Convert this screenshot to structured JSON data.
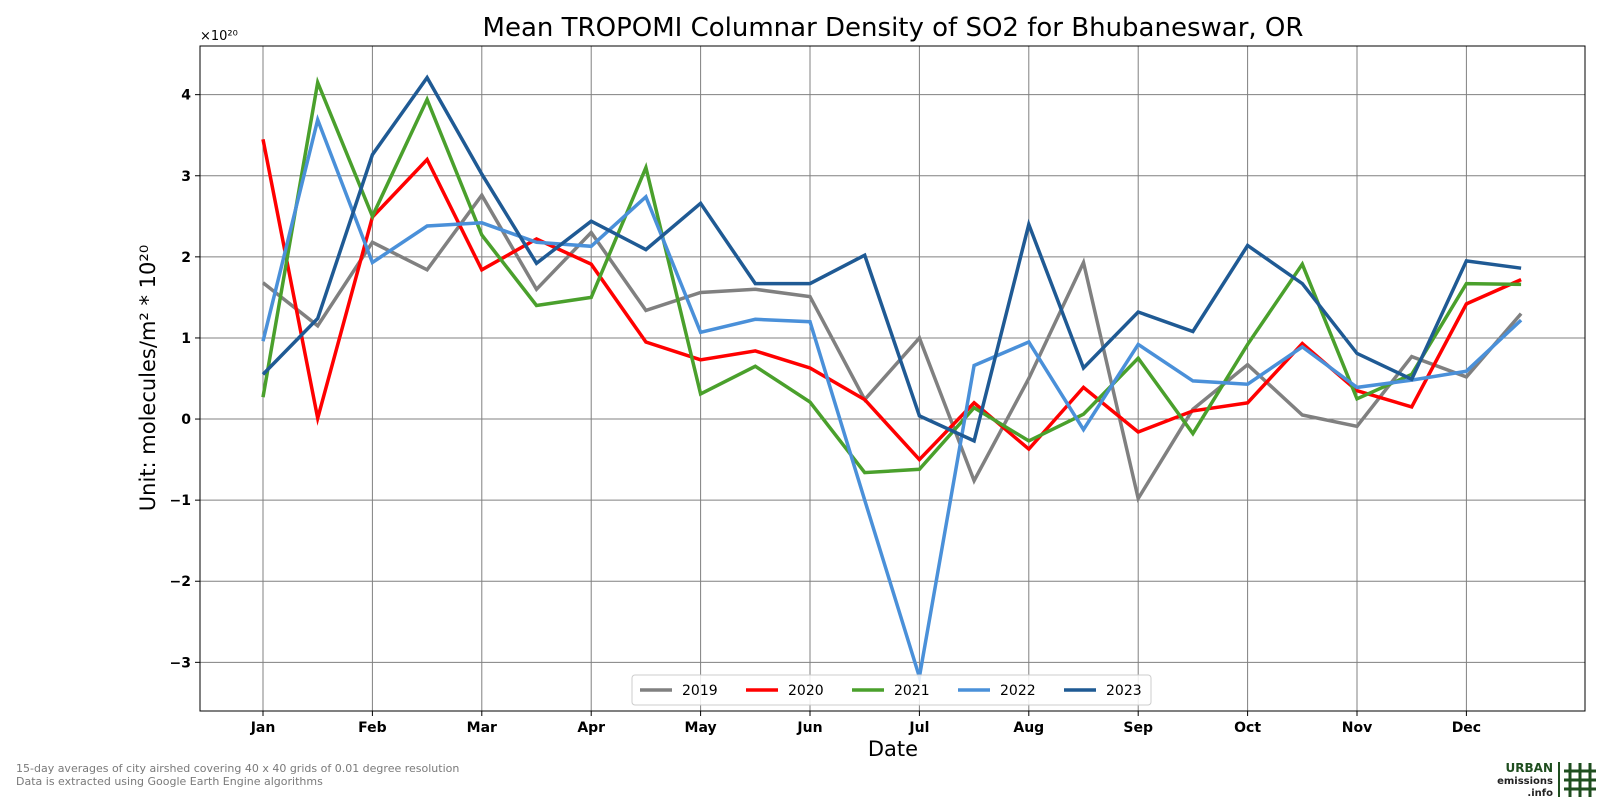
{
  "chart_data": {
    "type": "line",
    "title": "Mean TROPOMI Columnar Density of SO2 for Bhubaneswar, OR",
    "xlabel": "Date",
    "ylabel": "Unit: molecules/m² * 10²⁰",
    "y_offset_label": "×10²⁰",
    "ylim": [
      -3.6,
      4.6
    ],
    "yticks": [
      -3,
      -2,
      -1,
      0,
      1,
      2,
      3,
      4
    ],
    "ytick_labels": [
      "−3",
      "−2",
      "−1",
      "0",
      "1",
      "2",
      "3",
      "4"
    ],
    "x_tick_labels": [
      "Jan",
      "Feb",
      "Mar",
      "Apr",
      "May",
      "Jun",
      "Jul",
      "Aug",
      "Sep",
      "Oct",
      "Nov",
      "Dec"
    ],
    "grid": true,
    "legend_position": "bottom-center",
    "series": [
      {
        "name": "2019",
        "color": "#808080",
        "values": [
          1.68,
          1.15,
          2.18,
          1.84,
          2.76,
          1.6,
          2.3,
          1.34,
          1.56,
          1.6,
          1.51,
          0.24,
          1.0,
          -0.76,
          0.5,
          1.93,
          -0.98,
          0.12,
          0.67,
          0.05,
          -0.09,
          0.77,
          0.52,
          1.3
        ]
      },
      {
        "name": "2020",
        "color": "#ff0000",
        "values": [
          3.45,
          0.01,
          2.49,
          3.2,
          1.84,
          2.22,
          1.91,
          0.95,
          0.73,
          0.84,
          0.63,
          0.24,
          -0.5,
          0.2,
          -0.37,
          0.39,
          -0.16,
          0.1,
          0.2,
          0.93,
          0.35,
          0.15,
          1.42,
          1.72
        ]
      },
      {
        "name": "2021",
        "color": "#4aa02c",
        "values": [
          0.27,
          4.15,
          2.5,
          3.94,
          2.27,
          1.4,
          1.5,
          3.1,
          0.31,
          0.65,
          0.21,
          -0.66,
          -0.62,
          0.14,
          -0.27,
          0.06,
          0.75,
          -0.18,
          0.92,
          1.91,
          0.25,
          0.55,
          1.67,
          1.66
        ]
      },
      {
        "name": "2022",
        "color": "#4a90d9",
        "values": [
          0.96,
          3.69,
          1.93,
          2.38,
          2.42,
          2.18,
          2.13,
          2.74,
          1.07,
          1.23,
          1.2,
          -1.0,
          -3.18,
          0.66,
          0.95,
          -0.13,
          0.92,
          0.47,
          0.43,
          0.89,
          0.39,
          0.48,
          0.59,
          1.22
        ]
      },
      {
        "name": "2023",
        "color": "#1f5a94",
        "values": [
          0.55,
          1.24,
          3.26,
          4.21,
          3.02,
          1.92,
          2.44,
          2.09,
          2.66,
          1.67,
          1.67,
          2.02,
          0.04,
          -0.27,
          2.4,
          0.63,
          1.32,
          1.08,
          2.14,
          1.67,
          0.81,
          0.49,
          1.95,
          1.86
        ]
      }
    ]
  },
  "footnote": {
    "line1": "15-day averages of city airshed covering 40 x 40 grids of 0.01 degree resolution",
    "line2": "Data is extracted using Google Earth Engine algorithms"
  },
  "logo": {
    "line1": "URBAN",
    "line2": "emissions",
    "line3": ".info",
    "color": "#1f4e1f"
  }
}
